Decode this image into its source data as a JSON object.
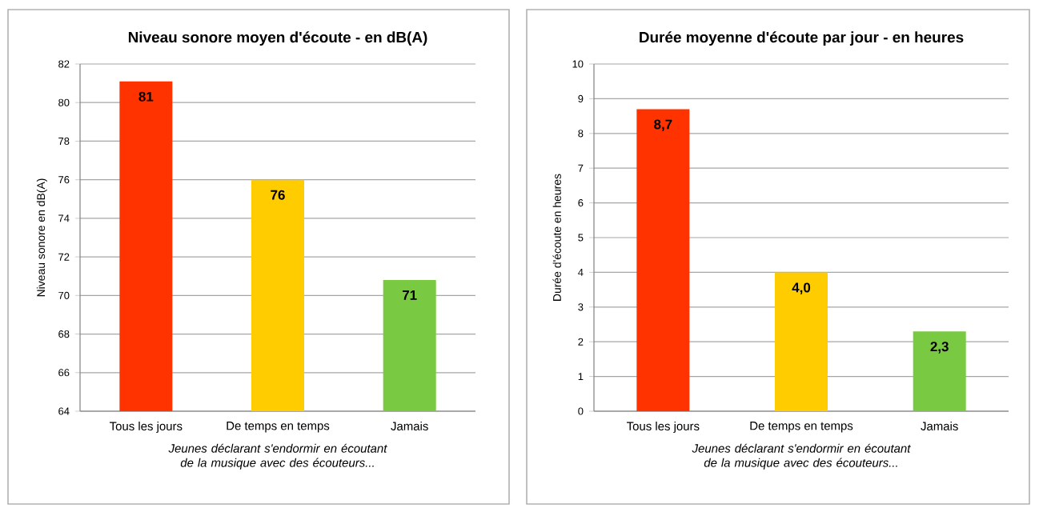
{
  "chart_data": [
    {
      "type": "bar",
      "title": "Niveau sonore moyen d'écoute - en dB(A)",
      "xlabel": "*Jeunes déclarant s'endormir en écoutant de la musique avec des écouteurs...*",
      "ylabel": "Niveau sonore en dB(A)",
      "categories": [
        "Tous les jours",
        "De temps en temps",
        "Jamais"
      ],
      "values": [
        81.1,
        76.0,
        70.8
      ],
      "value_labels": [
        "81",
        "76",
        "71"
      ],
      "colors": [
        "#ff3300",
        "#ffcc00",
        "#7ac943"
      ],
      "ylim": [
        64,
        82
      ],
      "yticks": [
        64,
        66,
        68,
        70,
        72,
        74,
        76,
        78,
        80,
        82
      ],
      "grid": "y"
    },
    {
      "type": "bar",
      "title": "Durée moyenne d'écoute par jour - en heures",
      "xlabel": "*Jeunes déclarant s'endormir en écoutant de la musique avec des écouteurs...*",
      "ylabel": "Durée d'écoute en heures",
      "categories": [
        "Tous les jours",
        "De temps en temps",
        "Jamais"
      ],
      "values": [
        8.7,
        4.0,
        2.3
      ],
      "value_labels": [
        "8,7",
        "4,0",
        "2,3"
      ],
      "colors": [
        "#ff3300",
        "#ffcc00",
        "#7ac943"
      ],
      "ylim": [
        0,
        10
      ],
      "yticks": [
        0,
        1,
        2,
        3,
        4,
        5,
        6,
        7,
        8,
        9,
        10
      ],
      "grid": "y"
    }
  ]
}
